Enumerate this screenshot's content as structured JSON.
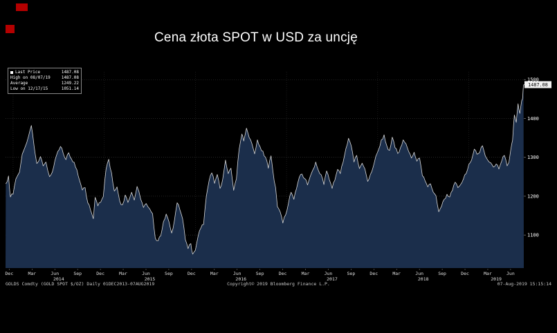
{
  "page": {
    "title": "Cena złota SPOT w USD za uncję"
  },
  "colors": {
    "background": "#000000",
    "area_fill": "#1b2e4b",
    "line": "#d9d9d9",
    "grid": "#3c3c3c",
    "grid_vertical": "#2a2a2a",
    "axis_text": "#ffffff",
    "badge_bg": "#f2f2f2",
    "badge_text": "#000000",
    "marker_red": "#b40000"
  },
  "legend": {
    "rows": [
      {
        "label": "Last Price",
        "value": "1487.08"
      },
      {
        "label": "High on 08/07/19",
        "value": "1487.08"
      },
      {
        "label": "Average",
        "value": "1249.22"
      },
      {
        "label": "Low on 12/17/15",
        "value": "1051.14"
      }
    ]
  },
  "footer": {
    "left": "GOLDS Comdty (GOLD SPOT $/OZ)  Daily 01DEC2013-07AUG2019",
    "center": "Copyright© 2019 Bloomberg Finance L.P.",
    "right": "07-Aug-2019 15:15:14"
  },
  "chart_data": {
    "type": "area",
    "title": "Cena złota SPOT w USD za uncję",
    "ylabel": "",
    "ylim": [
      1015,
      1520
    ],
    "yticks": [
      1100,
      1200,
      1300,
      1400,
      1500
    ],
    "xlim_years": [
      2013.917,
      2019.603
    ],
    "grid": true,
    "legend_position": "top-left",
    "last_price": 1487.08,
    "last_price_label": "1487.08",
    "x_month_ticks": [
      {
        "t": 2013.958,
        "label": "Dec"
      },
      {
        "t": 2014.208,
        "label": "Mar"
      },
      {
        "t": 2014.458,
        "label": "Jun"
      },
      {
        "t": 2014.708,
        "label": "Sep"
      },
      {
        "t": 2014.958,
        "label": "Dec"
      },
      {
        "t": 2015.208,
        "label": "Mar"
      },
      {
        "t": 2015.458,
        "label": "Jun"
      },
      {
        "t": 2015.708,
        "label": "Sep"
      },
      {
        "t": 2015.958,
        "label": "Dec"
      },
      {
        "t": 2016.208,
        "label": "Mar"
      },
      {
        "t": 2016.458,
        "label": "Jun"
      },
      {
        "t": 2016.708,
        "label": "Sep"
      },
      {
        "t": 2016.958,
        "label": "Dec"
      },
      {
        "t": 2017.208,
        "label": "Mar"
      },
      {
        "t": 2017.458,
        "label": "Jun"
      },
      {
        "t": 2017.708,
        "label": "Sep"
      },
      {
        "t": 2017.958,
        "label": "Dec"
      },
      {
        "t": 2018.208,
        "label": "Mar"
      },
      {
        "t": 2018.458,
        "label": "Jun"
      },
      {
        "t": 2018.708,
        "label": "Sep"
      },
      {
        "t": 2018.958,
        "label": "Dec"
      },
      {
        "t": 2019.208,
        "label": "Mar"
      },
      {
        "t": 2019.458,
        "label": "Jun"
      }
    ],
    "x_year_ticks": [
      {
        "t": 2014.5,
        "label": "2014"
      },
      {
        "t": 2015.5,
        "label": "2015"
      },
      {
        "t": 2016.5,
        "label": "2016"
      },
      {
        "t": 2017.5,
        "label": "2017"
      },
      {
        "t": 2018.5,
        "label": "2018"
      },
      {
        "t": 2019.3,
        "label": "2019"
      }
    ],
    "series": [
      {
        "name": "GOLD SPOT $/OZ",
        "points": [
          [
            2013.92,
            1232
          ],
          [
            2013.95,
            1252
          ],
          [
            2013.97,
            1198
          ],
          [
            2014.0,
            1205
          ],
          [
            2014.03,
            1244
          ],
          [
            2014.07,
            1262
          ],
          [
            2014.1,
            1308
          ],
          [
            2014.13,
            1326
          ],
          [
            2014.17,
            1355
          ],
          [
            2014.2,
            1382
          ],
          [
            2014.23,
            1330
          ],
          [
            2014.26,
            1284
          ],
          [
            2014.3,
            1302
          ],
          [
            2014.33,
            1278
          ],
          [
            2014.36,
            1288
          ],
          [
            2014.4,
            1250
          ],
          [
            2014.43,
            1262
          ],
          [
            2014.46,
            1293
          ],
          [
            2014.49,
            1315
          ],
          [
            2014.52,
            1328
          ],
          [
            2014.55,
            1310
          ],
          [
            2014.58,
            1294
          ],
          [
            2014.61,
            1312
          ],
          [
            2014.64,
            1296
          ],
          [
            2014.67,
            1287
          ],
          [
            2014.7,
            1268
          ],
          [
            2014.73,
            1240
          ],
          [
            2014.76,
            1216
          ],
          [
            2014.79,
            1222
          ],
          [
            2014.82,
            1183
          ],
          [
            2014.85,
            1164
          ],
          [
            2014.88,
            1142
          ],
          [
            2014.9,
            1197
          ],
          [
            2014.93,
            1175
          ],
          [
            2014.96,
            1184
          ],
          [
            2014.99,
            1199
          ],
          [
            2015.02,
            1270
          ],
          [
            2015.05,
            1295
          ],
          [
            2015.08,
            1260
          ],
          [
            2015.11,
            1213
          ],
          [
            2015.14,
            1224
          ],
          [
            2015.17,
            1187
          ],
          [
            2015.2,
            1178
          ],
          [
            2015.23,
            1203
          ],
          [
            2015.26,
            1184
          ],
          [
            2015.3,
            1210
          ],
          [
            2015.33,
            1190
          ],
          [
            2015.36,
            1225
          ],
          [
            2015.4,
            1192
          ],
          [
            2015.43,
            1171
          ],
          [
            2015.46,
            1181
          ],
          [
            2015.5,
            1167
          ],
          [
            2015.53,
            1155
          ],
          [
            2015.56,
            1092
          ],
          [
            2015.59,
            1085
          ],
          [
            2015.62,
            1098
          ],
          [
            2015.65,
            1135
          ],
          [
            2015.68,
            1154
          ],
          [
            2015.71,
            1134
          ],
          [
            2015.74,
            1105
          ],
          [
            2015.77,
            1138
          ],
          [
            2015.8,
            1183
          ],
          [
            2015.83,
            1165
          ],
          [
            2015.86,
            1142
          ],
          [
            2015.89,
            1088
          ],
          [
            2015.92,
            1065
          ],
          [
            2015.95,
            1078
          ],
          [
            2015.97,
            1051
          ],
          [
            2016.0,
            1061
          ],
          [
            2016.03,
            1097
          ],
          [
            2016.06,
            1118
          ],
          [
            2016.09,
            1127
          ],
          [
            2016.12,
            1200
          ],
          [
            2016.15,
            1239
          ],
          [
            2016.18,
            1260
          ],
          [
            2016.21,
            1233
          ],
          [
            2016.24,
            1256
          ],
          [
            2016.27,
            1220
          ],
          [
            2016.3,
            1244
          ],
          [
            2016.33,
            1293
          ],
          [
            2016.36,
            1258
          ],
          [
            2016.39,
            1272
          ],
          [
            2016.42,
            1215
          ],
          [
            2016.45,
            1245
          ],
          [
            2016.48,
            1321
          ],
          [
            2016.51,
            1360
          ],
          [
            2016.53,
            1342
          ],
          [
            2016.56,
            1375
          ],
          [
            2016.59,
            1351
          ],
          [
            2016.62,
            1335
          ],
          [
            2016.65,
            1309
          ],
          [
            2016.68,
            1345
          ],
          [
            2016.71,
            1327
          ],
          [
            2016.74,
            1316
          ],
          [
            2016.77,
            1300
          ],
          [
            2016.8,
            1272
          ],
          [
            2016.83,
            1304
          ],
          [
            2016.85,
            1265
          ],
          [
            2016.88,
            1222
          ],
          [
            2016.9,
            1173
          ],
          [
            2016.93,
            1160
          ],
          [
            2016.96,
            1131
          ],
          [
            2016.99,
            1152
          ],
          [
            2017.02,
            1180
          ],
          [
            2017.05,
            1210
          ],
          [
            2017.08,
            1192
          ],
          [
            2017.11,
            1220
          ],
          [
            2017.14,
            1249
          ],
          [
            2017.17,
            1257
          ],
          [
            2017.2,
            1245
          ],
          [
            2017.23,
            1229
          ],
          [
            2017.26,
            1251
          ],
          [
            2017.29,
            1268
          ],
          [
            2017.32,
            1288
          ],
          [
            2017.35,
            1266
          ],
          [
            2017.38,
            1255
          ],
          [
            2017.41,
            1230
          ],
          [
            2017.44,
            1265
          ],
          [
            2017.47,
            1242
          ],
          [
            2017.5,
            1220
          ],
          [
            2017.53,
            1241
          ],
          [
            2017.56,
            1269
          ],
          [
            2017.59,
            1258
          ],
          [
            2017.62,
            1287
          ],
          [
            2017.65,
            1321
          ],
          [
            2017.68,
            1349
          ],
          [
            2017.71,
            1330
          ],
          [
            2017.74,
            1288
          ],
          [
            2017.77,
            1305
          ],
          [
            2017.8,
            1271
          ],
          [
            2017.83,
            1285
          ],
          [
            2017.86,
            1270
          ],
          [
            2017.89,
            1238
          ],
          [
            2017.92,
            1256
          ],
          [
            2017.95,
            1275
          ],
          [
            2017.98,
            1303
          ],
          [
            2018.01,
            1320
          ],
          [
            2018.04,
            1345
          ],
          [
            2018.07,
            1358
          ],
          [
            2018.1,
            1330
          ],
          [
            2018.13,
            1318
          ],
          [
            2018.16,
            1352
          ],
          [
            2018.19,
            1325
          ],
          [
            2018.22,
            1310
          ],
          [
            2018.25,
            1325
          ],
          [
            2018.28,
            1345
          ],
          [
            2018.31,
            1335
          ],
          [
            2018.34,
            1315
          ],
          [
            2018.37,
            1298
          ],
          [
            2018.4,
            1313
          ],
          [
            2018.43,
            1290
          ],
          [
            2018.46,
            1298
          ],
          [
            2018.49,
            1253
          ],
          [
            2018.52,
            1240
          ],
          [
            2018.55,
            1224
          ],
          [
            2018.58,
            1232
          ],
          [
            2018.61,
            1210
          ],
          [
            2018.64,
            1201
          ],
          [
            2018.67,
            1160
          ],
          [
            2018.7,
            1174
          ],
          [
            2018.73,
            1192
          ],
          [
            2018.76,
            1205
          ],
          [
            2018.79,
            1198
          ],
          [
            2018.82,
            1215
          ],
          [
            2018.85,
            1236
          ],
          [
            2018.88,
            1222
          ],
          [
            2018.91,
            1230
          ],
          [
            2018.94,
            1244
          ],
          [
            2018.97,
            1258
          ],
          [
            2019.0,
            1282
          ],
          [
            2019.03,
            1293
          ],
          [
            2019.06,
            1321
          ],
          [
            2019.09,
            1308
          ],
          [
            2019.12,
            1313
          ],
          [
            2019.15,
            1330
          ],
          [
            2019.18,
            1304
          ],
          [
            2019.21,
            1292
          ],
          [
            2019.24,
            1286
          ],
          [
            2019.27,
            1275
          ],
          [
            2019.3,
            1283
          ],
          [
            2019.33,
            1270
          ],
          [
            2019.36,
            1290
          ],
          [
            2019.39,
            1305
          ],
          [
            2019.42,
            1278
          ],
          [
            2019.44,
            1287
          ],
          [
            2019.46,
            1320
          ],
          [
            2019.48,
            1344
          ],
          [
            2019.5,
            1409
          ],
          [
            2019.52,
            1390
          ],
          [
            2019.54,
            1438
          ],
          [
            2019.56,
            1413
          ],
          [
            2019.58,
            1446
          ],
          [
            2019.59,
            1452
          ],
          [
            2019.6,
            1487
          ]
        ]
      }
    ]
  }
}
